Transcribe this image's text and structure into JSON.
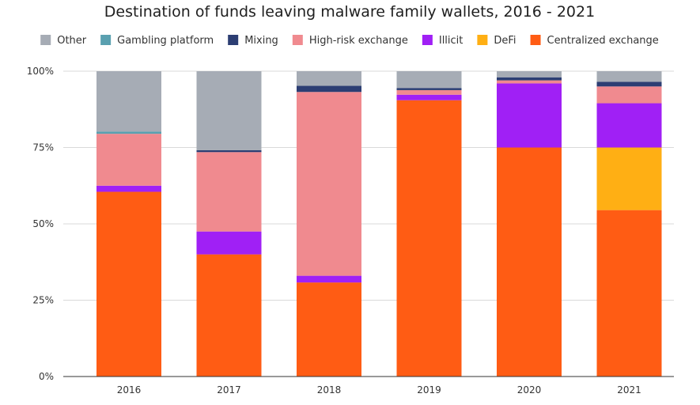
{
  "chart_data": {
    "type": "bar",
    "stacked": true,
    "title": "Destination of funds leaving malware family wallets, 2016 - 2021",
    "xlabel": "",
    "ylabel": "",
    "ylim": [
      0,
      100
    ],
    "y_ticks": [
      "0%",
      "25%",
      "50%",
      "75%",
      "100%"
    ],
    "grid": true,
    "legend_position": "top",
    "categories": [
      "2016",
      "2017",
      "2018",
      "2019",
      "2020",
      "2021"
    ],
    "series": [
      {
        "name": "Centralized exchange",
        "color": "#ff5c14",
        "values": [
          60.5,
          40,
          30.8,
          90.5,
          75,
          54.5
        ]
      },
      {
        "name": "DeFi",
        "color": "#ffaf14",
        "values": [
          0,
          0,
          0,
          0,
          0,
          20.5
        ]
      },
      {
        "name": "Illicit",
        "color": "#a020f5",
        "values": [
          2,
          7.5,
          2.2,
          1.8,
          21,
          14.5
        ]
      },
      {
        "name": "High-risk exchange",
        "color": "#f08a8f",
        "values": [
          17,
          26,
          60.2,
          1.5,
          1,
          5.5
        ]
      },
      {
        "name": "Mixing",
        "color": "#2c3e73",
        "values": [
          0,
          0.6,
          2,
          0.7,
          1,
          1.5
        ]
      },
      {
        "name": "Gambling platform",
        "color": "#5aa0b0",
        "values": [
          0.7,
          0,
          0,
          0,
          0,
          0
        ]
      },
      {
        "name": "Other",
        "color": "#a6acb5",
        "values": [
          19.8,
          25.9,
          4.8,
          5.5,
          2,
          3.5
        ]
      }
    ],
    "legend_order": [
      "Other",
      "Gambling platform",
      "Mixing",
      "High-risk exchange",
      "Illicit",
      "DeFi",
      "Centralized exchange"
    ]
  }
}
